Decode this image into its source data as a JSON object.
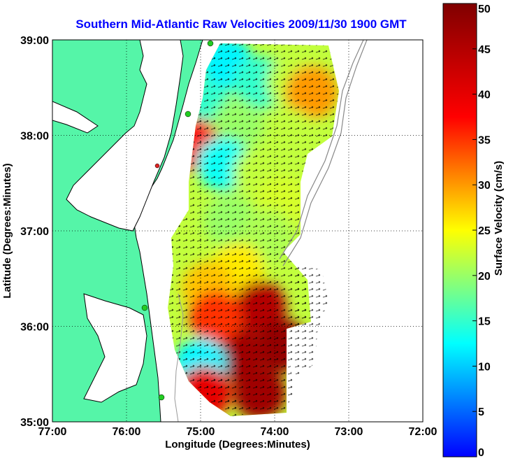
{
  "chart_data": {
    "type": "heatmap",
    "title": "Southern Mid-Atlantic Raw Velocities 2009/11/30 1900 GMT",
    "xlabel": "Longitude (Degrees:Minutes)",
    "ylabel": "Latitude (Degrees:Minutes)",
    "colorbar_label": "Surface Velocity (cm/s)",
    "x_ticks": [
      "77:00",
      "76:00",
      "75:00",
      "74:00",
      "73:00",
      "72:00"
    ],
    "y_ticks": [
      "35:00",
      "36:00",
      "37:00",
      "38:00",
      "39:00"
    ],
    "colorbar_ticks": [
      "0",
      "5",
      "10",
      "15",
      "20",
      "25",
      "30",
      "35",
      "40",
      "45",
      "50"
    ],
    "xlim": [
      -77,
      -72
    ],
    "ylim": [
      35,
      39
    ],
    "clim": [
      0,
      50
    ],
    "grid": true,
    "regions": [
      {
        "lon": -74.65,
        "lat": 38.75,
        "speed": 12
      },
      {
        "lon": -74.2,
        "lat": 38.55,
        "speed": 15
      },
      {
        "lon": -73.75,
        "lat": 38.55,
        "speed": 22
      },
      {
        "lon": -73.5,
        "lat": 38.45,
        "speed": 30
      },
      {
        "lon": -74.95,
        "lat": 38.3,
        "speed": 15
      },
      {
        "lon": -74.5,
        "lat": 38.1,
        "speed": 20
      },
      {
        "lon": -73.8,
        "lat": 38.0,
        "speed": 22
      },
      {
        "lon": -75.1,
        "lat": 37.9,
        "speed": 38
      },
      {
        "lon": -74.7,
        "lat": 37.7,
        "speed": 13
      },
      {
        "lon": -74.2,
        "lat": 37.6,
        "speed": 22
      },
      {
        "lon": -73.9,
        "lat": 37.3,
        "speed": 23
      },
      {
        "lon": -74.6,
        "lat": 37.1,
        "speed": 20
      },
      {
        "lon": -74.1,
        "lat": 36.95,
        "speed": 21
      },
      {
        "lon": -74.5,
        "lat": 36.6,
        "speed": 26
      },
      {
        "lon": -74.9,
        "lat": 36.4,
        "speed": 28
      },
      {
        "lon": -74.2,
        "lat": 36.2,
        "speed": 45
      },
      {
        "lon": -73.9,
        "lat": 35.8,
        "speed": 48
      },
      {
        "lon": -74.5,
        "lat": 35.7,
        "speed": 47
      },
      {
        "lon": -74.8,
        "lat": 36.1,
        "speed": 35
      },
      {
        "lon": -75.0,
        "lat": 35.6,
        "speed": 12
      },
      {
        "lon": -74.95,
        "lat": 35.3,
        "speed": 40
      },
      {
        "lon": -74.2,
        "lat": 35.3,
        "speed": 47
      }
    ]
  }
}
